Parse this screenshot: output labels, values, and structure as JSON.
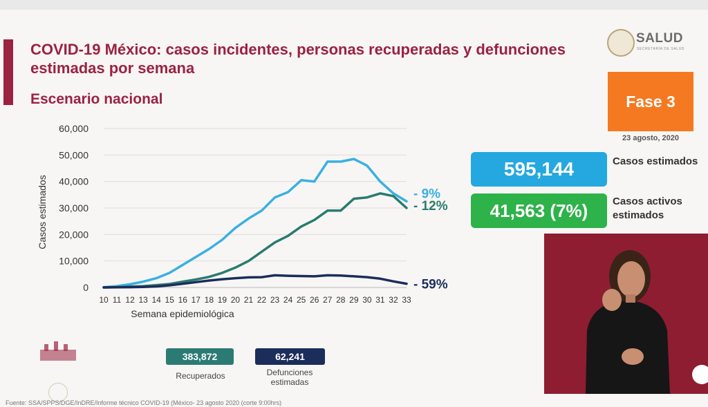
{
  "title": "COVID-19 México: casos incidentes, personas recuperadas y defunciones estimadas por semana",
  "subtitle": "Escenario nacional",
  "logo": {
    "text": "SALUD",
    "subtext": "SECRETARÍA DE SALUD"
  },
  "phase": {
    "label": "Fase 3",
    "date": "23 agosto, 2020"
  },
  "stats": {
    "cases_value": "595,144",
    "cases_label": "Casos estimados",
    "active_value": "41,563 (7%)",
    "active_label": "Casos activos estimados"
  },
  "badges": {
    "recovered_value": "383,872",
    "recovered_label": "Recuperados",
    "deaths_value": "62,241",
    "deaths_label": "Defunciones estimadas"
  },
  "source": "Fuente: SSA/SPPS/DGE/InDRE/Informe técnico COVID-19 (México- 23 agosto 2020 (corte 9:00hrs)",
  "colors": {
    "cases": "#3ab0e2",
    "recovered": "#2a7b6f",
    "deaths": "#1b2d5b",
    "brand": "#9b2240"
  },
  "chart_data": {
    "type": "line",
    "xlabel": "Semana epidemiológica",
    "ylabel": "Casos estimados",
    "x": [
      10,
      11,
      12,
      13,
      14,
      15,
      16,
      17,
      18,
      19,
      20,
      21,
      22,
      23,
      24,
      25,
      26,
      27,
      28,
      29,
      30,
      31,
      32,
      33
    ],
    "ylim": [
      0,
      60000
    ],
    "yticks": [
      "0",
      "10,000",
      "20,000",
      "30,000",
      "40,000",
      "50,000",
      "60,000"
    ],
    "grid": true,
    "series": [
      {
        "key": "cases",
        "end_label": "- 9%",
        "values": [
          100,
          500,
          1200,
          2200,
          3500,
          5500,
          8500,
          11500,
          14500,
          18000,
          22500,
          26000,
          29000,
          34000,
          36000,
          40500,
          40000,
          47500,
          47500,
          48500,
          46000,
          40000,
          35500,
          32500
        ]
      },
      {
        "key": "recovered",
        "end_label": "- 12%",
        "values": [
          0,
          100,
          300,
          500,
          900,
          1300,
          2200,
          3000,
          4000,
          5500,
          7500,
          10000,
          13500,
          17000,
          19500,
          23000,
          25500,
          29000,
          29000,
          33500,
          34000,
          35500,
          34500,
          30000
        ]
      },
      {
        "key": "deaths",
        "end_label": "- 59%",
        "values": [
          0,
          50,
          100,
          200,
          400,
          800,
          1400,
          2000,
          2600,
          3100,
          3500,
          3800,
          3900,
          4600,
          4400,
          4300,
          4200,
          4600,
          4500,
          4200,
          3900,
          3300,
          2300,
          1400
        ]
      }
    ]
  }
}
